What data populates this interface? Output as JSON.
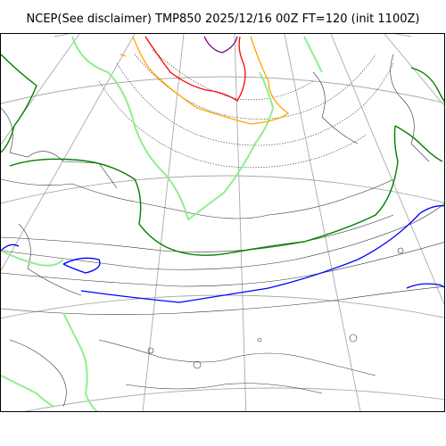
{
  "title": "NCEP(See disclaimer) TMP850 2025/12/16 00Z FT=120 (init 1100Z)",
  "colors": {
    "graticule": "#aaaaaa",
    "coastline": "#000000",
    "isotherm_minus30": "#800080",
    "isotherm_minus24": "#ff0000",
    "isotherm_minus18": "#ffa500",
    "isotherm_minus6": "#90ee90",
    "isotherm_0": "#008000",
    "isotherm_6": "#0000ff",
    "isotherm_other": "#000000"
  }
}
